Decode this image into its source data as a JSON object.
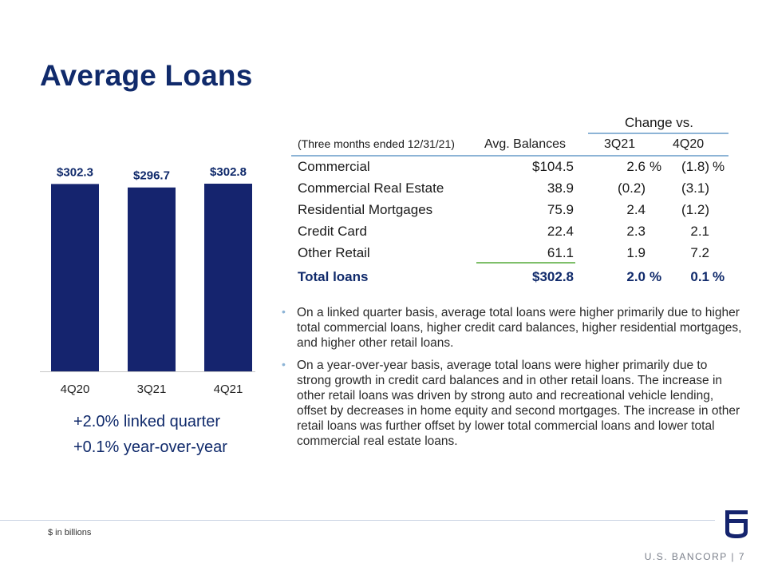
{
  "page": {
    "title": "Average Loans"
  },
  "chart_data": {
    "type": "bar",
    "categories": [
      "4Q20",
      "3Q21",
      "4Q21"
    ],
    "values": [
      302.3,
      296.7,
      302.8
    ],
    "value_labels": [
      "$302.3",
      "$296.7",
      "$302.8"
    ],
    "color": "#15246e",
    "title": "",
    "xlabel": "",
    "ylabel": ""
  },
  "notes": {
    "linked": "+2.0% linked quarter",
    "yoy": "+0.1% year-over-year"
  },
  "table": {
    "change_header": "Change vs.",
    "headers": [
      "(Three months ended 12/31/21)",
      "Avg. Balances",
      "3Q21",
      "4Q20"
    ],
    "rows": [
      {
        "label": "Commercial",
        "avg": "$104.5",
        "q3": "2.6",
        "q3_suffix": "%",
        "q4": "(1.8)",
        "q4_suffix": "%"
      },
      {
        "label": "Commercial Real Estate",
        "avg": "38.9",
        "q3": "(0.2)",
        "q3_suffix": "",
        "q4": "(3.1)",
        "q4_suffix": ""
      },
      {
        "label": "Residential Mortgages",
        "avg": "75.9",
        "q3": "2.4",
        "q3_suffix": "",
        "q4": "(1.2)",
        "q4_suffix": ""
      },
      {
        "label": "Credit Card",
        "avg": "22.4",
        "q3": "2.3",
        "q3_suffix": "",
        "q4": "2.1",
        "q4_suffix": ""
      },
      {
        "label": "Other Retail",
        "avg": "61.1",
        "q3": "1.9",
        "q3_suffix": "",
        "q4": "7.2",
        "q4_suffix": ""
      }
    ],
    "total": {
      "label": "Total loans",
      "avg": "$302.8",
      "q3": "2.0",
      "q3_suffix": "%",
      "q4": "0.1",
      "q4_suffix": "%"
    }
  },
  "bullets": [
    "On a linked quarter basis, average total loans were higher primarily due to higher total commercial loans, higher credit card balances, higher residential mortgages, and higher other retail loans.",
    "On a year-over-year basis, average total loans were higher primarily due to strong growth in credit card balances and in other retail loans. The increase in other retail loans was driven by strong auto and recreational vehicle lending, offset by decreases in home equity and second mortgages. The increase in other retail loans was further offset by lower total commercial loans and lower total commercial real estate loans."
  ],
  "footer": {
    "footnote": "$ in billions",
    "brand": "U.S. BANCORP  |  7"
  },
  "icons": {
    "logo": "us-bank-shield-logo",
    "bullet": "bullet-dot-icon"
  }
}
